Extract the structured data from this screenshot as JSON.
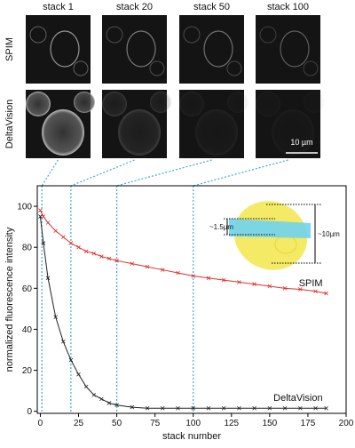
{
  "panels": {
    "columns": [
      "stack 1",
      "stack 20",
      "stack 50",
      "stack 100"
    ],
    "rows": [
      "SPIM",
      "DeltaVision"
    ],
    "scale_bar": "10 µm"
  },
  "chart_data": {
    "type": "line",
    "x_label": "stack number",
    "y_label": "normalized fluorescence intensity",
    "x": [
      0,
      2,
      5,
      10,
      15,
      20,
      25,
      30,
      35,
      40,
      45,
      50,
      60,
      70,
      80,
      90,
      100,
      110,
      120,
      130,
      140,
      150,
      160,
      170,
      180,
      187
    ],
    "series": [
      {
        "name": "SPIM",
        "color": "#d9332f",
        "values": [
          98,
          95,
          92,
          88,
          85,
          82,
          80,
          78,
          77,
          75.5,
          74.5,
          73.5,
          72,
          70.5,
          69,
          67.5,
          66,
          65,
          64,
          63,
          62,
          61,
          60,
          59.5,
          58.5,
          57.5
        ]
      },
      {
        "name": "DeltaVision",
        "color": "#222222",
        "values": [
          95,
          82,
          65,
          46,
          34,
          25,
          18,
          12,
          8,
          6,
          4,
          3,
          2,
          1.5,
          1.5,
          1.5,
          1.5,
          1.5,
          1.5,
          1.5,
          1.5,
          1.5,
          1.5,
          1.5,
          1.5,
          1.5
        ]
      }
    ],
    "highlight_x": [
      1,
      20,
      50,
      100
    ],
    "highlight_color": "#3aa8d8",
    "annotations": [
      "~1.5µm",
      "~10µm"
    ],
    "xlim": [
      -2,
      200
    ],
    "ylim": [
      -1,
      110
    ],
    "xticks": [
      0,
      25,
      50,
      75,
      100,
      125,
      150,
      175,
      200
    ],
    "yticks": [
      0,
      20,
      40,
      60,
      80,
      100
    ]
  }
}
